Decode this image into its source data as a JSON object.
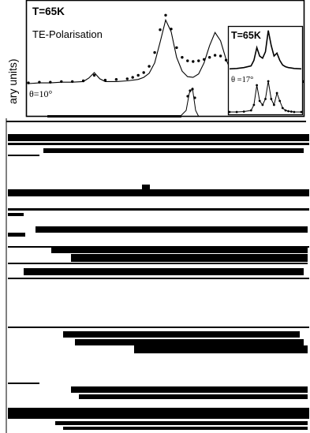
{
  "chart_data": [
    {
      "type": "line",
      "panel": "main",
      "title": "T=65K",
      "subtitle": "TE-Polarisation",
      "ylabel": "ary units)",
      "annotation": "θ=10°",
      "xlim": [
        0,
        100
      ],
      "ylim": [
        0,
        1.05
      ],
      "series": [
        {
          "style": "dots",
          "x": [
            0,
            4,
            8,
            12,
            16,
            20,
            24,
            28,
            32,
            36,
            38,
            40,
            42,
            44,
            46,
            48,
            50,
            52,
            54,
            56,
            58,
            60,
            62,
            64,
            66,
            68,
            70,
            72,
            74,
            76,
            78,
            80,
            84,
            88,
            92,
            96,
            100
          ],
          "y": [
            0.01,
            0.02,
            0.02,
            0.03,
            0.03,
            0.04,
            0.12,
            0.05,
            0.06,
            0.07,
            0.09,
            0.12,
            0.16,
            0.25,
            0.45,
            0.78,
            0.99,
            0.79,
            0.52,
            0.38,
            0.33,
            0.32,
            0.33,
            0.35,
            0.38,
            0.41,
            0.4,
            0.34,
            0.26,
            0.18,
            0.12,
            0.09,
            0.06,
            0.05,
            0.04,
            0.03,
            0.03
          ]
        },
        {
          "style": "line",
          "x": [
            0,
            4,
            8,
            12,
            16,
            20,
            22,
            24,
            26,
            28,
            32,
            36,
            40,
            42,
            44,
            46,
            48,
            50,
            52,
            54,
            56,
            58,
            60,
            62,
            64,
            66,
            68,
            70,
            72,
            74,
            76,
            78,
            80,
            84,
            88,
            92,
            96,
            100
          ],
          "y": [
            0.0,
            0.01,
            0.01,
            0.02,
            0.02,
            0.03,
            0.08,
            0.16,
            0.07,
            0.03,
            0.03,
            0.04,
            0.06,
            0.09,
            0.15,
            0.3,
            0.6,
            0.92,
            0.75,
            0.38,
            0.18,
            0.1,
            0.09,
            0.14,
            0.3,
            0.55,
            0.74,
            0.62,
            0.35,
            0.16,
            0.08,
            0.05,
            0.03,
            0.02,
            0.02,
            0.01,
            0.01,
            0.01
          ]
        }
      ]
    },
    {
      "type": "line",
      "panel": "inset",
      "title": "T=65K",
      "annotation": "θ =17°",
      "xlim": [
        0,
        100
      ],
      "ylim": [
        0,
        1.05
      ],
      "series": [
        {
          "style": "line",
          "x": [
            0,
            10,
            20,
            30,
            34,
            38,
            42,
            46,
            50,
            54,
            58,
            62,
            66,
            70,
            74,
            78,
            82,
            86,
            90,
            100
          ],
          "y": [
            0.05,
            0.06,
            0.08,
            0.12,
            0.25,
            0.55,
            0.35,
            0.3,
            0.45,
            0.95,
            0.6,
            0.35,
            0.42,
            0.25,
            0.14,
            0.1,
            0.08,
            0.07,
            0.06,
            0.05
          ]
        },
        {
          "style": "dots",
          "x": [
            0,
            10,
            20,
            30,
            34,
            38,
            42,
            46,
            50,
            54,
            58,
            62,
            66,
            70,
            74,
            78,
            82,
            86,
            90,
            100
          ],
          "y": [
            0.02,
            0.02,
            0.03,
            0.06,
            0.2,
            0.7,
            0.3,
            0.2,
            0.35,
            0.8,
            0.35,
            0.2,
            0.5,
            0.3,
            0.12,
            0.06,
            0.04,
            0.03,
            0.02,
            0.02
          ]
        }
      ]
    }
  ]
}
